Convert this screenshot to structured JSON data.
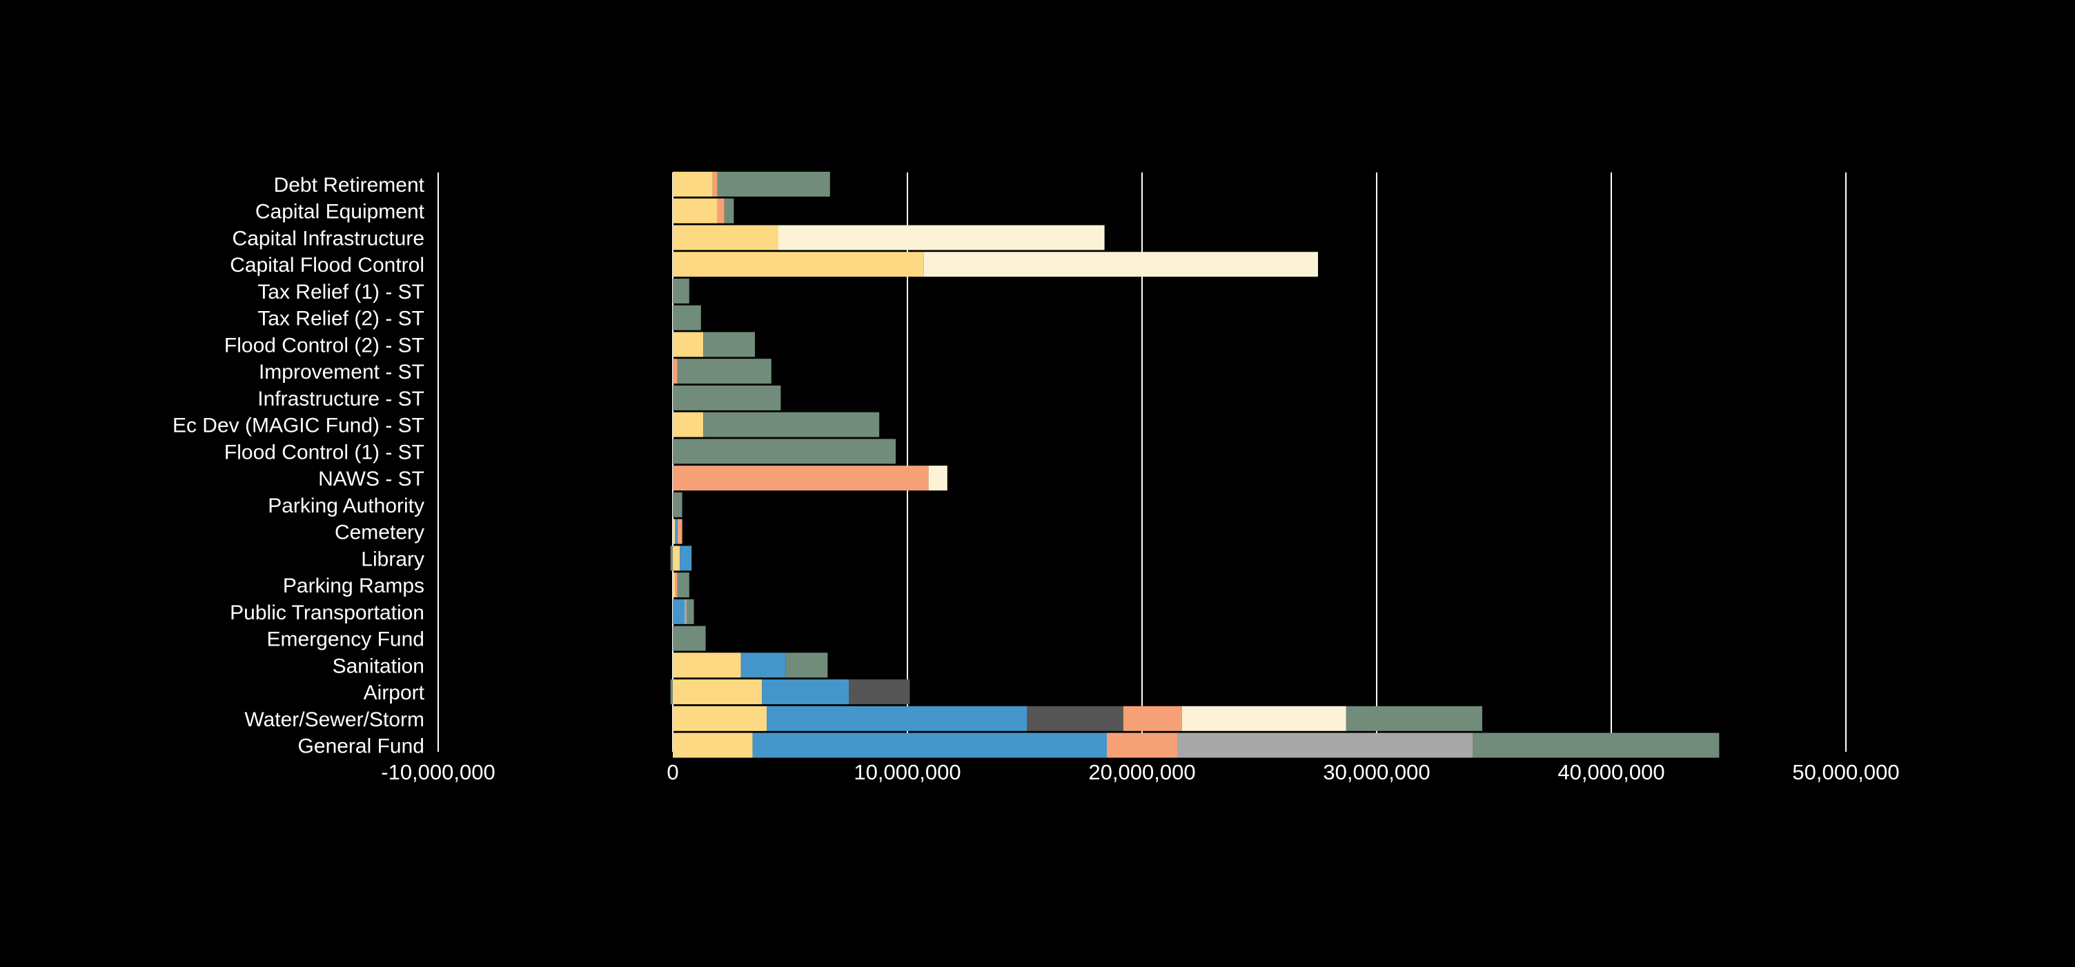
{
  "chart_data": {
    "type": "bar",
    "orientation": "horizontal",
    "stacked": true,
    "title": "",
    "xlabel": "",
    "ylabel": "",
    "xlim": [
      -10000000,
      50000000
    ],
    "xticks": [
      -10000000,
      0,
      10000000,
      20000000,
      30000000,
      40000000,
      50000000
    ],
    "xtick_labels": [
      "-10,000,000",
      "0",
      "10,000,000",
      "20,000,000",
      "30,000,000",
      "40,000,000",
      "50,000,000"
    ],
    "grid": true,
    "legend": "none",
    "colors": {
      "yellow": "#fed983",
      "blue": "#4596ca",
      "dark_gray": "#555555",
      "salmon": "#f6a175",
      "cream": "#fcf2d8",
      "light_gray": "#a8a8a8",
      "green": "#718c7a",
      "grid": "#ffffff",
      "text": "#ffffff",
      "background": "#000000"
    },
    "categories": [
      "Debt Retirement",
      "Capital Equipment",
      "Capital Infrastructure",
      "Capital Flood Control",
      "Tax Relief (1) - ST",
      "Tax Relief (2) - ST",
      "Flood Control (2) - ST",
      "Improvement - ST",
      "Infrastructure - ST",
      "Ec Dev (MAGIC Fund) - ST",
      "Flood Control (1) - ST",
      "NAWS - ST",
      "Parking Authority",
      "Cemetery",
      "Library",
      "Parking Ramps",
      "Public Transportation",
      "Emergency Fund",
      "Sanitation",
      "Airport",
      "Water/Sewer/Storm",
      "General Fund"
    ],
    "series": [
      {
        "color_key": "yellow",
        "values": [
          1700000,
          1900000,
          4500000,
          10700000,
          0,
          0,
          1300000,
          0,
          0,
          1300000,
          0,
          0,
          0,
          100000,
          300000,
          100000,
          0,
          0,
          2900000,
          3800000,
          4000000,
          3400000
        ]
      },
      {
        "color_key": "blue",
        "values": [
          0,
          0,
          0,
          0,
          0,
          0,
          0,
          0,
          0,
          0,
          0,
          0,
          0,
          100000,
          500000,
          0,
          500000,
          0,
          1900000,
          3700000,
          11100000,
          15100000
        ]
      },
      {
        "color_key": "dark_gray",
        "values": [
          0,
          0,
          0,
          0,
          0,
          0,
          0,
          0,
          0,
          0,
          0,
          0,
          0,
          0,
          0,
          0,
          0,
          0,
          0,
          2600000,
          4100000,
          0
        ]
      },
      {
        "color_key": "salmon",
        "values": [
          200000,
          300000,
          0,
          0,
          0,
          0,
          0,
          200000,
          0,
          0,
          0,
          10900000,
          0,
          200000,
          0,
          100000,
          0,
          0,
          0,
          0,
          2500000,
          3000000
        ]
      },
      {
        "color_key": "cream",
        "values": [
          0,
          0,
          13900000,
          16800000,
          0,
          0,
          0,
          0,
          0,
          0,
          0,
          800000,
          0,
          0,
          0,
          0,
          0,
          0,
          0,
          0,
          7000000,
          0
        ]
      },
      {
        "color_key": "light_gray",
        "values": [
          0,
          0,
          0,
          0,
          0,
          0,
          0,
          0,
          0,
          0,
          0,
          0,
          0,
          0,
          0,
          0,
          100000,
          0,
          0,
          0,
          0,
          12600000
        ]
      },
      {
        "color_key": "green",
        "values": [
          4800000,
          400000,
          0,
          0,
          700000,
          1200000,
          2200000,
          4000000,
          4600000,
          7500000,
          9500000,
          0,
          400000,
          0,
          0,
          500000,
          300000,
          1400000,
          1800000,
          0,
          5800000,
          10500000
        ]
      }
    ],
    "negative_values": {
      "Library": -100000,
      "Airport": -100000
    }
  }
}
